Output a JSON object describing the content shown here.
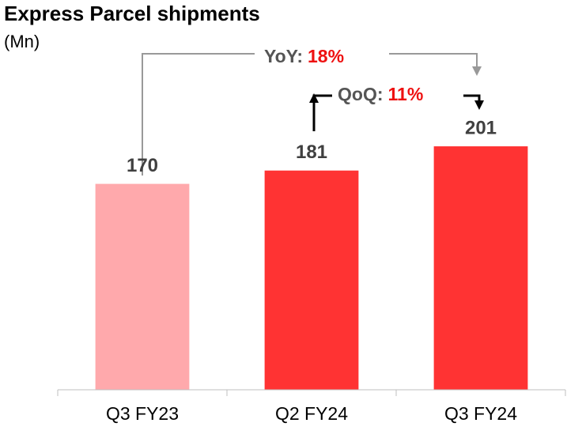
{
  "chart_data": {
    "type": "bar",
    "title": "Express Parcel shipments",
    "unit": "(Mn)",
    "categories": [
      "Q3 FY23",
      "Q2 FY24",
      "Q3 FY24"
    ],
    "values": [
      170,
      181,
      201
    ],
    "colors": [
      "#ffa9ac",
      "#ff3333",
      "#ff3333"
    ],
    "ylim": [
      0,
      250
    ],
    "annotations": [
      {
        "label": "YoY:",
        "change": "18%"
      },
      {
        "label": "QoQ:",
        "change": "11%"
      }
    ]
  }
}
